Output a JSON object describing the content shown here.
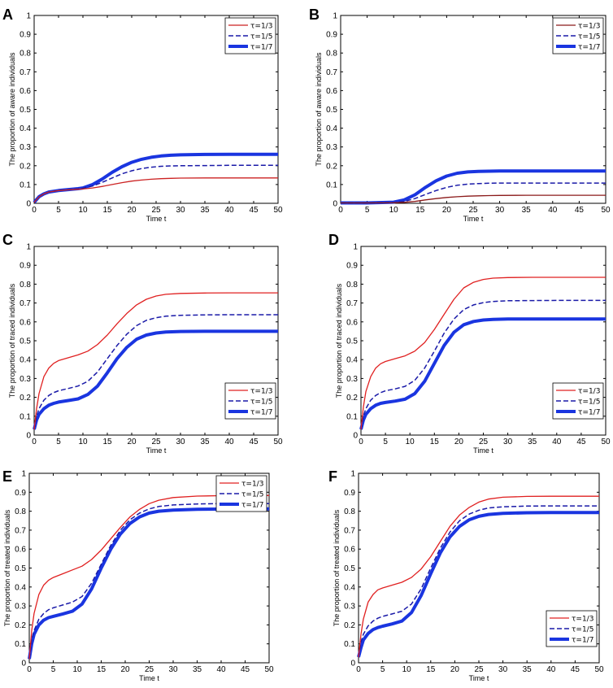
{
  "chart_data": [
    {
      "panel": "A",
      "type": "line",
      "xlabel": "Time t",
      "ylabel": "The proportion of aware individuals",
      "xlim": [
        0,
        50
      ],
      "ylim": [
        0,
        1
      ],
      "xticks": [
        0,
        5,
        10,
        15,
        20,
        25,
        30,
        35,
        40,
        45,
        50
      ],
      "yticks": [
        0,
        0.1,
        0.2,
        0.3,
        0.4,
        0.5,
        0.6,
        0.7,
        0.8,
        0.9,
        1
      ],
      "legend_position": "top-right",
      "x": [
        0,
        1,
        2,
        3,
        5,
        7,
        9,
        10,
        12,
        14,
        16,
        18,
        20,
        22,
        24,
        26,
        28,
        30,
        35,
        40,
        45,
        50
      ],
      "series": [
        {
          "name": "τ=1/3",
          "color": "#cc2222",
          "style": "solid",
          "weight": "thin",
          "values": [
            0.005,
            0.035,
            0.05,
            0.06,
            0.068,
            0.072,
            0.075,
            0.076,
            0.082,
            0.09,
            0.1,
            0.11,
            0.118,
            0.124,
            0.128,
            0.131,
            0.133,
            0.134,
            0.135,
            0.135,
            0.135,
            0.135
          ]
        },
        {
          "name": "τ=1/5",
          "color": "#1a1aa8",
          "style": "dashed",
          "weight": "medium",
          "values": [
            0.005,
            0.035,
            0.05,
            0.06,
            0.068,
            0.073,
            0.077,
            0.08,
            0.092,
            0.112,
            0.135,
            0.157,
            0.173,
            0.185,
            0.192,
            0.197,
            0.199,
            0.2,
            0.201,
            0.202,
            0.202,
            0.202
          ]
        },
        {
          "name": "τ=1/7",
          "color": "#1a35e0",
          "style": "solid",
          "weight": "thick",
          "values": [
            0.005,
            0.035,
            0.05,
            0.06,
            0.068,
            0.073,
            0.078,
            0.082,
            0.1,
            0.13,
            0.165,
            0.195,
            0.218,
            0.234,
            0.245,
            0.252,
            0.256,
            0.258,
            0.26,
            0.261,
            0.261,
            0.261
          ]
        }
      ]
    },
    {
      "panel": "B",
      "type": "line",
      "xlabel": "Time t",
      "ylabel": "The proportion of aware individuals",
      "xlim": [
        0,
        50
      ],
      "ylim": [
        0,
        1
      ],
      "xticks": [
        0,
        5,
        10,
        15,
        20,
        25,
        30,
        35,
        40,
        45,
        50
      ],
      "yticks": [
        0,
        0.1,
        0.2,
        0.3,
        0.4,
        0.5,
        0.6,
        0.7,
        0.8,
        0.9,
        1
      ],
      "legend_position": "top-right",
      "x": [
        0,
        5,
        10,
        12,
        14,
        16,
        18,
        20,
        22,
        24,
        26,
        28,
        30,
        35,
        40,
        45,
        50
      ],
      "series": [
        {
          "name": "τ=1/3",
          "color": "#8b1a1a",
          "style": "solid",
          "weight": "thin",
          "values": [
            0.002,
            0.002,
            0.003,
            0.005,
            0.01,
            0.018,
            0.025,
            0.031,
            0.035,
            0.038,
            0.04,
            0.041,
            0.042,
            0.043,
            0.043,
            0.043,
            0.043
          ]
        },
        {
          "name": "τ=1/5",
          "color": "#1a1aa8",
          "style": "dashed",
          "weight": "medium",
          "values": [
            0.002,
            0.002,
            0.004,
            0.01,
            0.025,
            0.047,
            0.068,
            0.085,
            0.096,
            0.102,
            0.105,
            0.107,
            0.108,
            0.108,
            0.108,
            0.108,
            0.108
          ]
        },
        {
          "name": "τ=1/7",
          "color": "#1a35e0",
          "style": "solid",
          "weight": "thick",
          "values": [
            0.002,
            0.002,
            0.006,
            0.018,
            0.045,
            0.085,
            0.12,
            0.145,
            0.16,
            0.167,
            0.17,
            0.171,
            0.172,
            0.172,
            0.172,
            0.172,
            0.172
          ]
        }
      ]
    },
    {
      "panel": "C",
      "type": "line",
      "xlabel": "Time t",
      "ylabel": "The proportion of traced individuals",
      "xlim": [
        0,
        50
      ],
      "ylim": [
        0,
        1
      ],
      "xticks": [
        0,
        5,
        10,
        15,
        20,
        25,
        30,
        35,
        40,
        45,
        50
      ],
      "yticks": [
        0,
        0.1,
        0.2,
        0.3,
        0.4,
        0.5,
        0.6,
        0.7,
        0.8,
        0.9,
        1
      ],
      "legend_position": "bottom-right",
      "x": [
        0,
        0.5,
        1,
        2,
        3,
        4,
        5,
        7,
        9,
        11,
        13,
        15,
        17,
        19,
        21,
        23,
        25,
        27,
        30,
        35,
        40,
        50
      ],
      "series": [
        {
          "name": "τ=1/3",
          "color": "#e02020",
          "style": "solid",
          "weight": "thin",
          "values": [
            0.03,
            0.14,
            0.22,
            0.31,
            0.355,
            0.38,
            0.395,
            0.41,
            0.425,
            0.445,
            0.48,
            0.53,
            0.59,
            0.645,
            0.69,
            0.72,
            0.737,
            0.746,
            0.751,
            0.753,
            0.754,
            0.754
          ]
        },
        {
          "name": "τ=1/5",
          "color": "#1a1aa8",
          "style": "dashed",
          "weight": "medium",
          "values": [
            0.03,
            0.1,
            0.14,
            0.185,
            0.21,
            0.225,
            0.235,
            0.247,
            0.26,
            0.285,
            0.335,
            0.405,
            0.475,
            0.535,
            0.58,
            0.608,
            0.622,
            0.63,
            0.635,
            0.637,
            0.638,
            0.638
          ]
        },
        {
          "name": "τ=1/7",
          "color": "#1a35e0",
          "style": "solid",
          "weight": "thick",
          "values": [
            0.03,
            0.08,
            0.11,
            0.14,
            0.158,
            0.168,
            0.175,
            0.183,
            0.192,
            0.215,
            0.26,
            0.33,
            0.405,
            0.465,
            0.508,
            0.53,
            0.541,
            0.546,
            0.549,
            0.55,
            0.55,
            0.55
          ]
        }
      ]
    },
    {
      "panel": "D",
      "type": "line",
      "xlabel": "Time t",
      "ylabel": "The proportion of traced individuals",
      "xlim": [
        0,
        50
      ],
      "ylim": [
        0,
        1
      ],
      "xticks": [
        0,
        5,
        10,
        15,
        20,
        25,
        30,
        35,
        40,
        45,
        50
      ],
      "yticks": [
        0,
        0.1,
        0.2,
        0.3,
        0.4,
        0.5,
        0.6,
        0.7,
        0.8,
        0.9,
        1
      ],
      "legend_position": "bottom-right",
      "x": [
        0,
        0.5,
        1,
        2,
        3,
        4,
        5,
        7,
        9,
        11,
        13,
        15,
        17,
        19,
        21,
        23,
        25,
        27,
        30,
        35,
        40,
        50
      ],
      "series": [
        {
          "name": "τ=1/3",
          "color": "#e02020",
          "style": "solid",
          "weight": "thin",
          "values": [
            0.03,
            0.15,
            0.23,
            0.31,
            0.355,
            0.378,
            0.39,
            0.405,
            0.42,
            0.445,
            0.49,
            0.56,
            0.64,
            0.72,
            0.78,
            0.81,
            0.825,
            0.832,
            0.835,
            0.836,
            0.836,
            0.836
          ]
        },
        {
          "name": "τ=1/5",
          "color": "#1a1aa8",
          "style": "dashed",
          "weight": "medium",
          "values": [
            0.03,
            0.1,
            0.14,
            0.185,
            0.21,
            0.225,
            0.235,
            0.245,
            0.258,
            0.29,
            0.355,
            0.445,
            0.54,
            0.615,
            0.665,
            0.69,
            0.702,
            0.708,
            0.712,
            0.713,
            0.714,
            0.714
          ]
        },
        {
          "name": "τ=1/7",
          "color": "#1a35e0",
          "style": "solid",
          "weight": "thick",
          "values": [
            0.03,
            0.08,
            0.11,
            0.14,
            0.158,
            0.168,
            0.173,
            0.18,
            0.19,
            0.22,
            0.285,
            0.38,
            0.475,
            0.545,
            0.585,
            0.602,
            0.61,
            0.613,
            0.615,
            0.615,
            0.615,
            0.615
          ]
        }
      ]
    },
    {
      "panel": "E",
      "type": "line",
      "xlabel": "Time t",
      "ylabel": "The proportion of treated individuals",
      "xlim": [
        0,
        50
      ],
      "ylim": [
        0,
        1
      ],
      "xticks": [
        0,
        5,
        10,
        15,
        20,
        25,
        30,
        35,
        40,
        45,
        50
      ],
      "yticks": [
        0,
        0.1,
        0.2,
        0.3,
        0.4,
        0.5,
        0.6,
        0.7,
        0.8,
        0.9,
        1
      ],
      "legend_position": "top-right",
      "x": [
        0,
        0.5,
        1,
        2,
        3,
        4,
        5,
        7,
        9,
        11,
        13,
        15,
        17,
        19,
        21,
        23,
        25,
        27,
        30,
        35,
        40,
        50
      ],
      "series": [
        {
          "name": "τ=1/3",
          "color": "#e02020",
          "style": "solid",
          "weight": "thin",
          "values": [
            0.02,
            0.17,
            0.26,
            0.36,
            0.41,
            0.435,
            0.45,
            0.47,
            0.49,
            0.51,
            0.545,
            0.595,
            0.655,
            0.715,
            0.77,
            0.81,
            0.84,
            0.858,
            0.872,
            0.88,
            0.882,
            0.883
          ]
        },
        {
          "name": "τ=1/5",
          "color": "#1a1aa8",
          "style": "dashed",
          "weight": "medium",
          "values": [
            0.02,
            0.12,
            0.17,
            0.23,
            0.26,
            0.28,
            0.29,
            0.305,
            0.32,
            0.35,
            0.42,
            0.52,
            0.62,
            0.7,
            0.755,
            0.79,
            0.812,
            0.825,
            0.833,
            0.838,
            0.84,
            0.84
          ]
        },
        {
          "name": "τ=1/7",
          "color": "#1a35e0",
          "style": "solid",
          "weight": "thick",
          "values": [
            0.02,
            0.1,
            0.15,
            0.2,
            0.225,
            0.238,
            0.245,
            0.258,
            0.272,
            0.31,
            0.39,
            0.5,
            0.6,
            0.68,
            0.735,
            0.77,
            0.79,
            0.8,
            0.806,
            0.81,
            0.811,
            0.812
          ]
        }
      ]
    },
    {
      "panel": "F",
      "type": "line",
      "xlabel": "Time t",
      "ylabel": "The proportion of treated individuals",
      "xlim": [
        0,
        50
      ],
      "ylim": [
        0,
        1
      ],
      "xticks": [
        0,
        5,
        10,
        15,
        20,
        25,
        30,
        35,
        40,
        45,
        50
      ],
      "yticks": [
        0,
        0.1,
        0.2,
        0.3,
        0.4,
        0.5,
        0.6,
        0.7,
        0.8,
        0.9,
        1
      ],
      "legend_position": "bottom-right",
      "x": [
        0,
        0.5,
        1,
        2,
        3,
        4,
        5,
        7,
        9,
        11,
        13,
        15,
        17,
        19,
        21,
        23,
        25,
        27,
        30,
        35,
        40,
        50
      ],
      "series": [
        {
          "name": "τ=1/3",
          "color": "#e02020",
          "style": "solid",
          "weight": "thin",
          "values": [
            0.03,
            0.15,
            0.23,
            0.32,
            0.36,
            0.385,
            0.395,
            0.41,
            0.425,
            0.45,
            0.495,
            0.56,
            0.64,
            0.72,
            0.78,
            0.82,
            0.848,
            0.864,
            0.874,
            0.878,
            0.879,
            0.879
          ]
        },
        {
          "name": "τ=1/5",
          "color": "#1a1aa8",
          "style": "dashed",
          "weight": "medium",
          "values": [
            0.03,
            0.11,
            0.15,
            0.195,
            0.22,
            0.235,
            0.245,
            0.258,
            0.272,
            0.31,
            0.39,
            0.5,
            0.605,
            0.69,
            0.75,
            0.785,
            0.805,
            0.817,
            0.823,
            0.827,
            0.828,
            0.828
          ]
        },
        {
          "name": "τ=1/7",
          "color": "#1a35e0",
          "style": "solid",
          "weight": "thick",
          "values": [
            0.03,
            0.08,
            0.12,
            0.155,
            0.175,
            0.186,
            0.193,
            0.205,
            0.22,
            0.265,
            0.355,
            0.47,
            0.58,
            0.665,
            0.72,
            0.755,
            0.773,
            0.783,
            0.789,
            0.792,
            0.793,
            0.793
          ]
        }
      ]
    }
  ]
}
